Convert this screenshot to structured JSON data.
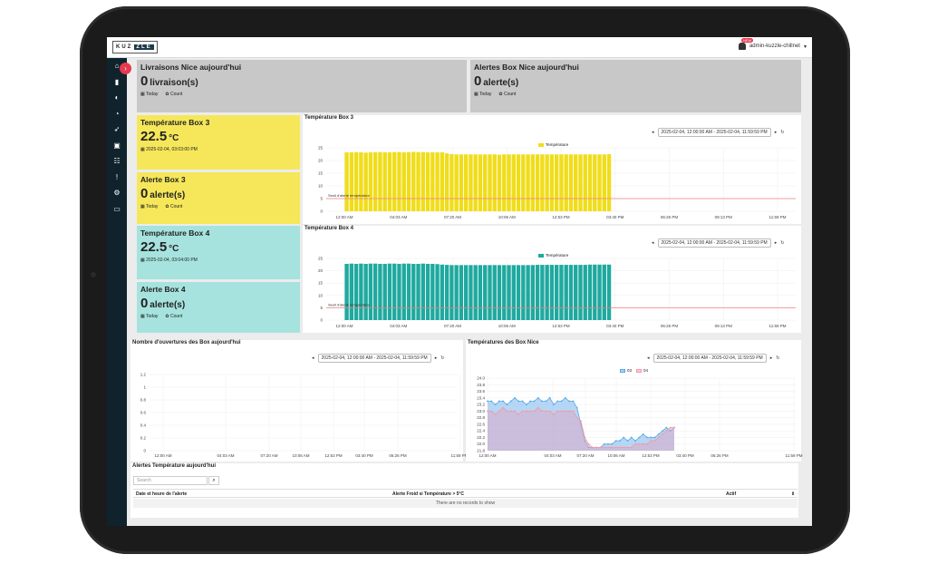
{
  "app": {
    "logo_left": "KUZ",
    "logo_right": "ZLE",
    "user": "admin-kuzzle-chillnet",
    "badge": "NEW"
  },
  "sidebar": {
    "items": [
      "home-icon",
      "thermometer-icon",
      "toggle-icon",
      "gauge-icon",
      "rocket-icon",
      "settings-box-icon",
      "hierarchy-icon",
      "alert-icon",
      "cogs-icon",
      "toolbox-icon"
    ],
    "collapse": "›"
  },
  "cards": {
    "livraisons": {
      "title": "Livraisons Nice aujourd'hui",
      "value": "0",
      "unit": "livraison(s)",
      "period": "Today",
      "agg": "Count"
    },
    "alertes_nice": {
      "title": "Alertes Box Nice aujourd'hui",
      "value": "0",
      "unit": "alerte(s)",
      "period": "Today",
      "agg": "Count"
    },
    "temp_box3": {
      "title": "Température Box 3",
      "value": "22.5",
      "unit": "°C",
      "time": "2025-02-04, 03:03:00 PM"
    },
    "alerte_box3": {
      "title": "Alerte Box 3",
      "value": "0",
      "unit": "alerte(s)",
      "period": "Today",
      "agg": "Count"
    },
    "temp_box4": {
      "title": "Température Box 4",
      "value": "22.5",
      "unit": "°C",
      "time": "2025-02-04, 03:04:00 PM"
    },
    "alerte_box4": {
      "title": "Alerte Box 4",
      "value": "0",
      "unit": "alerte(s)",
      "period": "Today",
      "agg": "Count"
    }
  },
  "range_text": "2025-02-04, 12:00:00 AM - 2025-02-04, 11:59:59 PM",
  "charts": {
    "box3": {
      "title": "Température Box 3",
      "legend": "Température",
      "threshold_label": "Seuil d'alerte température",
      "color": "#f0dd1a"
    },
    "box4": {
      "title": "Température Box 4",
      "legend": "Température",
      "threshold_label": "Seuil d'alerte température",
      "color": "#1fa99f"
    },
    "openings": {
      "title": "Nombre d'ouvertures des Box aujourd'hui"
    },
    "nice": {
      "title": "Températures des Box Nice",
      "legend": [
        "03",
        "04"
      ]
    }
  },
  "chart_data": [
    {
      "type": "bar",
      "title": "Température Box 3",
      "series": [
        {
          "name": "Température",
          "values": [
            23.2,
            23.2,
            23.3,
            23.2,
            23.1,
            23.2,
            23.3,
            23.3,
            23.2,
            23.2,
            23.3,
            23.3,
            23.2,
            23.3,
            23.4,
            23.3,
            23.3,
            23.2,
            23.2,
            23.2,
            23.2,
            22.8,
            22.5,
            22.4,
            22.4,
            22.4,
            22.4,
            22.4,
            22.4,
            22.4,
            22.4,
            22.4,
            22.3,
            22.4,
            22.4,
            22.4,
            22.4,
            22.4,
            22.4,
            22.4,
            22.4,
            22.4,
            22.4,
            22.4,
            22.4,
            22.4,
            22.4,
            22.4,
            22.4,
            22.4,
            22.4,
            22.4,
            22.4,
            22.4,
            22.4,
            22.5
          ]
        }
      ],
      "threshold": 5,
      "ylim": [
        0,
        25
      ],
      "yticks": [
        0,
        5,
        10,
        15,
        20,
        25
      ],
      "xticks": [
        "12:00 AM",
        "04:03 AM",
        "07:20 AM",
        "10:06 AM",
        "12:53 PM",
        "03:40 PM",
        "06:26 PM",
        "09:13 PM",
        "11:59 PM"
      ]
    },
    {
      "type": "bar",
      "title": "Température Box 4",
      "series": [
        {
          "name": "Température",
          "values": [
            22.8,
            22.9,
            22.8,
            22.9,
            22.8,
            22.9,
            22.9,
            22.8,
            22.8,
            22.9,
            22.9,
            22.8,
            22.9,
            22.9,
            22.8,
            22.8,
            22.9,
            22.8,
            22.8,
            22.7,
            22.5,
            22.4,
            22.3,
            22.3,
            22.3,
            22.3,
            22.3,
            22.3,
            22.3,
            22.3,
            22.3,
            22.3,
            22.3,
            22.3,
            22.3,
            22.3,
            22.3,
            22.3,
            22.3,
            22.3,
            22.4,
            22.4,
            22.4,
            22.4,
            22.4,
            22.4,
            22.4,
            22.4,
            22.4,
            22.4,
            22.4,
            22.5,
            22.5,
            22.5,
            22.5,
            22.5
          ]
        }
      ],
      "threshold": 5,
      "ylim": [
        0,
        25
      ],
      "yticks": [
        0,
        5,
        10,
        15,
        20,
        25
      ],
      "xticks": [
        "12:00 AM",
        "04:03 AM",
        "07:20 AM",
        "10:06 AM",
        "12:53 PM",
        "03:40 PM",
        "06:26 PM",
        "09:13 PM",
        "11:59 PM"
      ]
    },
    {
      "type": "line",
      "title": "Nombre d'ouvertures des Box aujourd'hui",
      "series": [],
      "ylim": [
        0,
        1.2
      ],
      "yticks": [
        "0",
        "0.2",
        "0.4",
        "0.6",
        "0.8",
        "1",
        "1.2"
      ],
      "xticks": [
        "12:00 AM",
        "04:03 AM",
        "07:20 AM",
        "10:06 AM",
        "12:53 PM",
        "03:40 PM",
        "06:26 PM",
        "11:59 PM"
      ]
    },
    {
      "type": "area",
      "title": "Températures des Box Nice",
      "series": [
        {
          "name": "03",
          "values": [
            23.3,
            23.3,
            23.2,
            23.3,
            23.3,
            23.2,
            23.3,
            23.4,
            23.3,
            23.3,
            23.2,
            23.3,
            23.3,
            23.4,
            23.3,
            23.3,
            23.4,
            23.2,
            23.3,
            23.3,
            23.4,
            23.3,
            23.3,
            23.1,
            22.6,
            22.1,
            21.9,
            21.9,
            21.9,
            21.9,
            22.0,
            22.0,
            22.0,
            22.1,
            22.1,
            22.2,
            22.1,
            22.2,
            22.1,
            22.2,
            22.3,
            22.2,
            22.2,
            22.2,
            22.3,
            22.4,
            22.5,
            22.4,
            22.5
          ]
        },
        {
          "name": "04",
          "values": [
            23.0,
            23.0,
            22.9,
            23.0,
            23.1,
            23.0,
            23.0,
            23.0,
            22.9,
            23.0,
            23.0,
            23.0,
            23.0,
            23.1,
            23.0,
            23.0,
            23.0,
            22.9,
            23.0,
            23.0,
            23.0,
            23.0,
            23.0,
            22.8,
            22.7,
            22.2,
            22.0,
            21.9,
            21.9,
            21.9,
            21.9,
            21.9,
            21.9,
            21.9,
            21.9,
            21.9,
            21.9,
            21.9,
            22.0,
            22.0,
            22.0,
            22.0,
            22.1,
            22.1,
            22.2,
            22.3,
            22.4,
            22.5,
            22.5
          ]
        }
      ],
      "ylim": [
        21.8,
        24.0
      ],
      "yticks": [
        "21.8",
        "22.0",
        "22.2",
        "22.4",
        "22.6",
        "22.8",
        "23.0",
        "23.2",
        "23.4",
        "23.6",
        "23.8",
        "24.0"
      ],
      "xticks": [
        "12:00 AM",
        "04:03 AM",
        "07:20 AM",
        "10:06 AM",
        "12:53 PM",
        "03:40 PM",
        "06:26 PM",
        "11:59 PM"
      ]
    }
  ],
  "table": {
    "title": "Alertes Température aujourd'hui",
    "search_placeholder": "Search",
    "cols": [
      "Date et heure de l'alerte",
      "Alerte Froid si Température > 5°C",
      "Actif"
    ],
    "empty": "There are no records to show"
  },
  "colors": {
    "sidebar": "#10232d",
    "accent": "#e53950",
    "yellow": "#f6e75a",
    "teal": "#a6e3df",
    "threshold": "#f08080",
    "s03": "#5aa9e6",
    "s04": "#f49aa6"
  }
}
